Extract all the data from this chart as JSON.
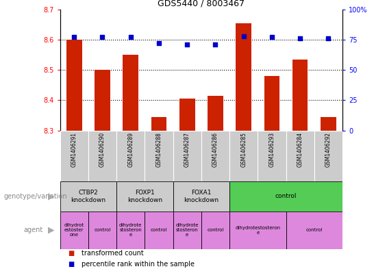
{
  "title": "GDS5440 / 8003467",
  "samples": [
    "GSM1406291",
    "GSM1406290",
    "GSM1406289",
    "GSM1406288",
    "GSM1406287",
    "GSM1406286",
    "GSM1406285",
    "GSM1406293",
    "GSM1406284",
    "GSM1406292"
  ],
  "transformed_count": [
    8.6,
    8.5,
    8.55,
    8.345,
    8.405,
    8.415,
    8.655,
    8.48,
    8.535,
    8.345
  ],
  "percentile_rank": [
    77,
    77,
    77,
    72,
    71,
    71,
    78,
    77,
    76,
    76
  ],
  "ylim": [
    8.3,
    8.7
  ],
  "yticks": [
    8.3,
    8.4,
    8.5,
    8.6,
    8.7
  ],
  "y2lim": [
    0,
    100
  ],
  "y2ticks": [
    0,
    25,
    50,
    75,
    100
  ],
  "y2labels": [
    "0",
    "25",
    "50",
    "75",
    "100%"
  ],
  "bar_color": "#cc2200",
  "dot_color": "#0000cc",
  "sample_box_color": "#cccccc",
  "genotype_groups": [
    {
      "label": "CTBP2\nknockdown",
      "start": 0,
      "end": 2,
      "color": "#cccccc"
    },
    {
      "label": "FOXP1\nknockdown",
      "start": 2,
      "end": 4,
      "color": "#cccccc"
    },
    {
      "label": "FOXA1\nknockdown",
      "start": 4,
      "end": 6,
      "color": "#cccccc"
    },
    {
      "label": "control",
      "start": 6,
      "end": 10,
      "color": "#55cc55"
    }
  ],
  "agent_groups": [
    {
      "label": "dihydrot\nestoster\none",
      "start": 0,
      "end": 1,
      "color": "#dd88dd"
    },
    {
      "label": "control",
      "start": 1,
      "end": 2,
      "color": "#dd88dd"
    },
    {
      "label": "dihydrote\nstosteron\ne",
      "start": 2,
      "end": 3,
      "color": "#dd88dd"
    },
    {
      "label": "control",
      "start": 3,
      "end": 4,
      "color": "#dd88dd"
    },
    {
      "label": "dihydrote\nstosteron\ne",
      "start": 4,
      "end": 5,
      "color": "#dd88dd"
    },
    {
      "label": "control",
      "start": 5,
      "end": 6,
      "color": "#dd88dd"
    },
    {
      "label": "dihydrotestosteron\ne",
      "start": 6,
      "end": 8,
      "color": "#dd88dd"
    },
    {
      "label": "control",
      "start": 8,
      "end": 10,
      "color": "#dd88dd"
    }
  ],
  "legend_bar_label": "transformed count",
  "legend_dot_label": "percentile rank within the sample",
  "genotype_label": "genotype/variation",
  "agent_label": "agent"
}
